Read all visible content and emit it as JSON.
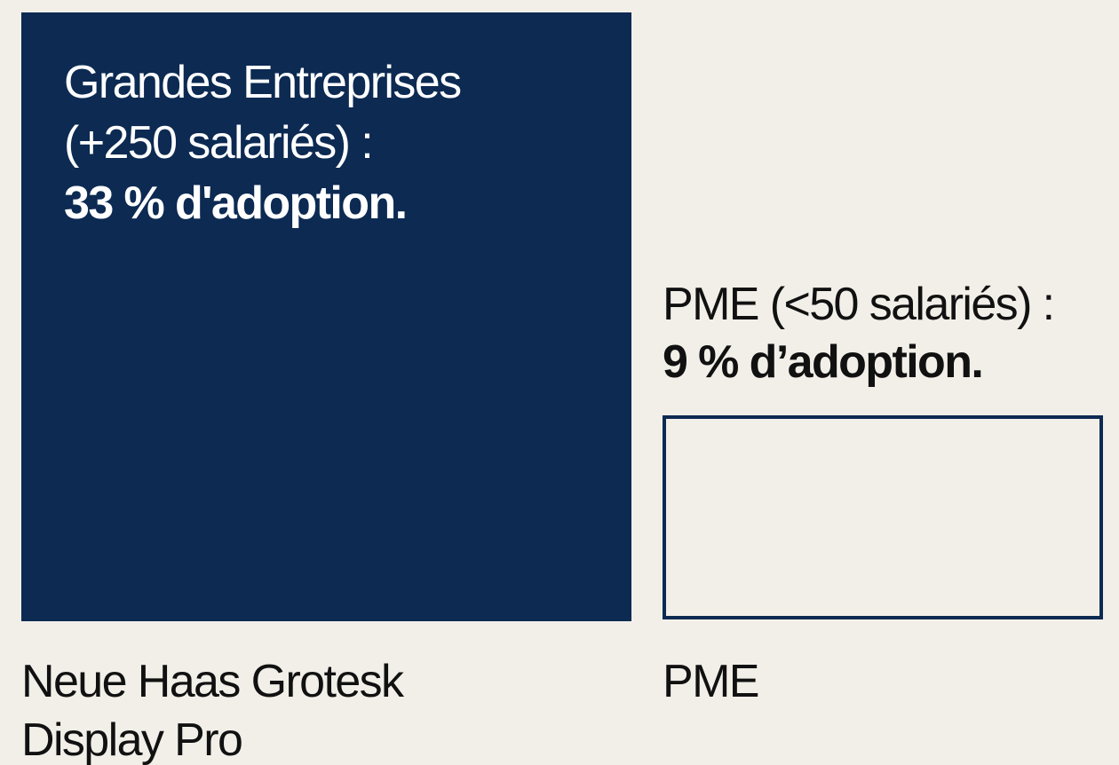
{
  "panels": [
    {
      "title_lines": [
        "Grandes Entreprises",
        "(+250 salariés) :"
      ],
      "highlight": "33 % d'adoption.",
      "caption_lines": [
        "Neue Haas Grotesk",
        "Display Pro"
      ]
    },
    {
      "title_lines": [
        "PME (<50 salariés) :"
      ],
      "highlight": "9 % d’adoption.",
      "caption_lines": [
        "PME"
      ]
    }
  ]
}
